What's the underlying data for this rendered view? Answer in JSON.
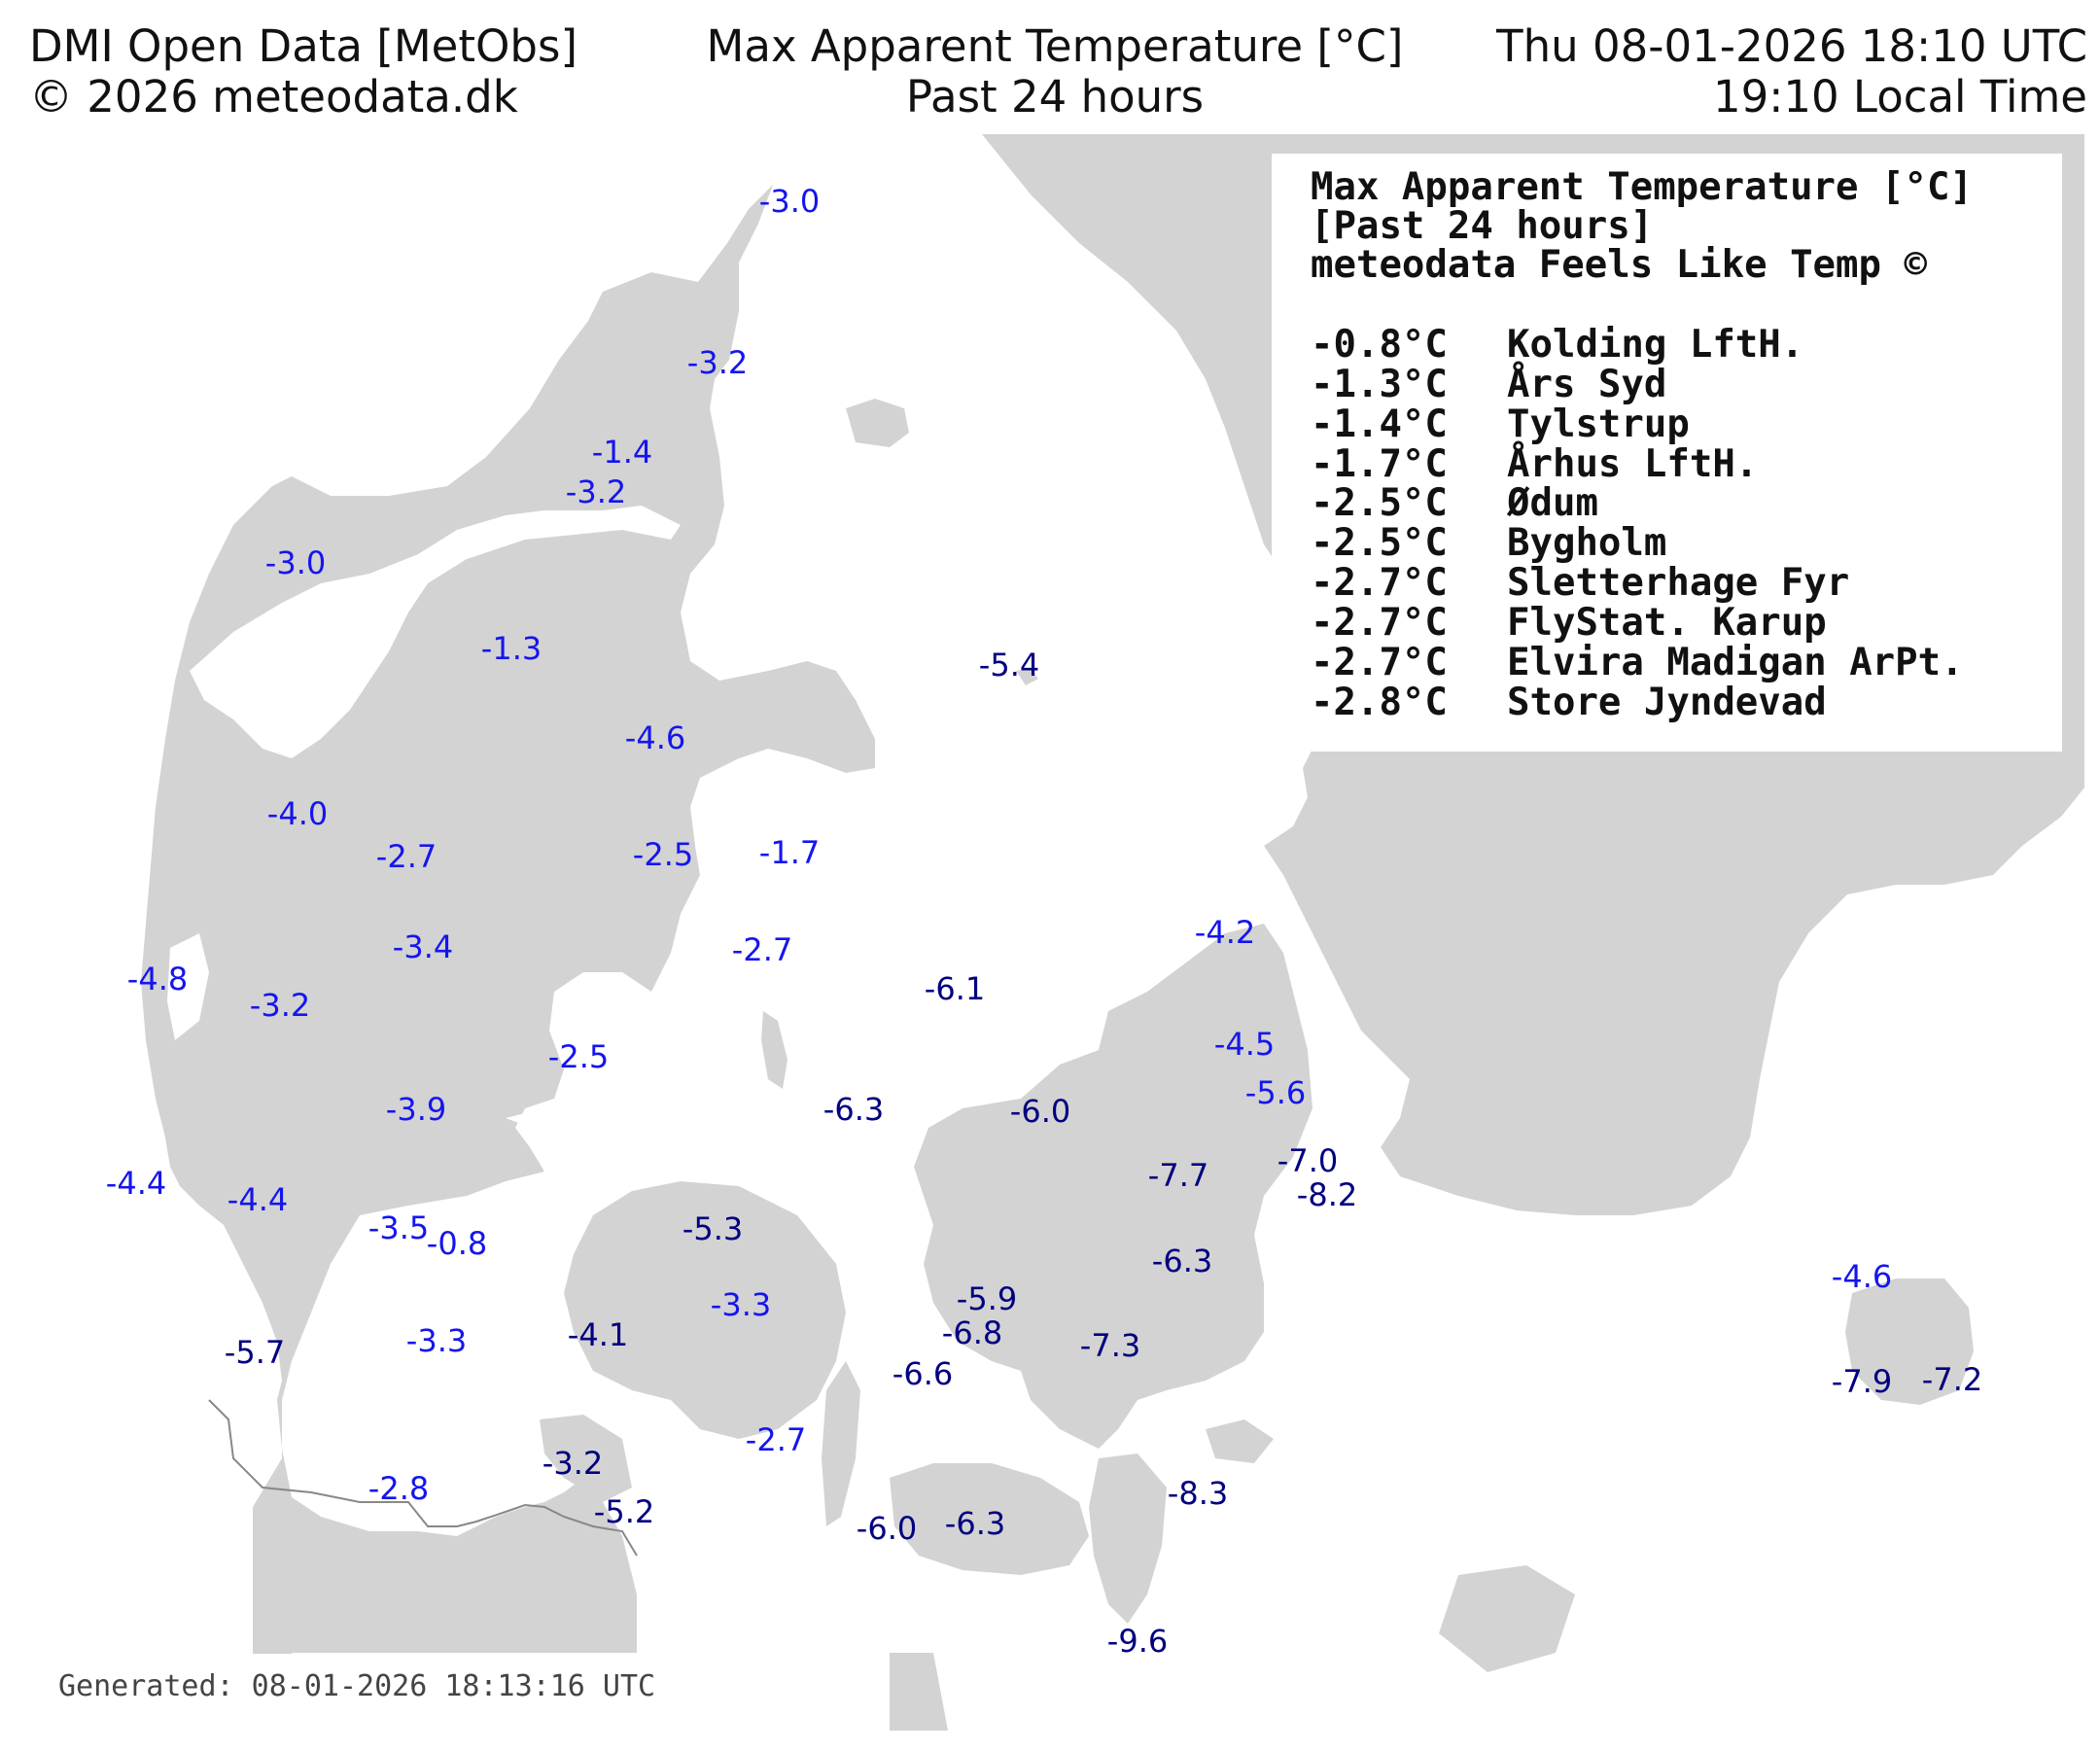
{
  "header": {
    "left_line1": "DMI Open Data [MetObs]",
    "left_line2": "© 2026 meteodata.dk",
    "center_line1": "Max Apparent Temperature [°C]",
    "center_line2": "Past 24 hours",
    "right_line1": "Thu 08-01-2026 18:10 UTC",
    "right_line2": "19:10 Local Time"
  },
  "legend": {
    "title1": "Max Apparent Temperature [°C]",
    "title2": "[Past 24 hours]",
    "title3": "meteodata Feels Like Temp ©",
    "rows": [
      {
        "value": "-0.8°C",
        "station": "Kolding LftH."
      },
      {
        "value": "-1.3°C",
        "station": "Års Syd"
      },
      {
        "value": "-1.4°C",
        "station": "Tylstrup"
      },
      {
        "value": "-1.7°C",
        "station": "Århus LftH."
      },
      {
        "value": "-2.5°C",
        "station": "Ødum"
      },
      {
        "value": "-2.5°C",
        "station": "Bygholm"
      },
      {
        "value": "-2.7°C",
        "station": "Sletterhage Fyr"
      },
      {
        "value": "-2.7°C",
        "station": "FlyStat. Karup"
      },
      {
        "value": "-2.7°C",
        "station": "Elvira Madigan ArPt."
      },
      {
        "value": "-2.8°C",
        "station": "Store Jyndevad"
      }
    ]
  },
  "footer": {
    "generated": "Generated: 08-01-2026 18:13:16 UTC"
  },
  "colors": {
    "land": "#d3d3d3",
    "water": "#ffffff",
    "label_blue": "#1515ee",
    "label_navy": "#000080",
    "border": "#888888"
  },
  "station_values": [
    "-3.0",
    "-3.2",
    "-1.4",
    "-3.2",
    "-3.0",
    "-1.3",
    "-4.6",
    "-5.4",
    "-4.0",
    "-2.7",
    "-2.5",
    "-1.7",
    "-2.7",
    "-3.4",
    "-4.8",
    "-3.2",
    "-6.1",
    "-4.2",
    "-4.5",
    "-2.5",
    "-5.6",
    "-3.9",
    "-6.3",
    "-6.0",
    "-7.0",
    "-7.7",
    "-8.2",
    "-4.4",
    "-4.4",
    "-3.5",
    "-0.8",
    "-5.3",
    "-6.3",
    "-3.3",
    "-5.9",
    "-4.6",
    "-4.1",
    "-3.3",
    "-6.8",
    "-7.3",
    "-5.7",
    "-6.6",
    "-7.9",
    "-7.2",
    "-2.7",
    "-3.2",
    "-2.8",
    "-5.2",
    "-8.3",
    "-6.0",
    "-6.3",
    "-9.6"
  ]
}
